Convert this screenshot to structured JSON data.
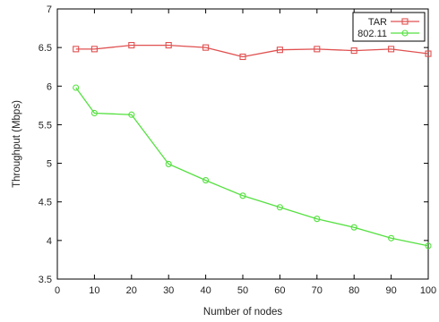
{
  "chart_data": {
    "type": "line",
    "title": "",
    "xlabel": "Number of nodes",
    "ylabel": "Throughput (Mbps)",
    "xlim": [
      0,
      100
    ],
    "ylim": [
      3.5,
      7
    ],
    "x_ticks": [
      0,
      10,
      20,
      30,
      40,
      50,
      60,
      70,
      80,
      90,
      100
    ],
    "y_ticks": [
      3.5,
      4,
      4.5,
      5,
      5.5,
      6,
      6.5,
      7
    ],
    "x_tick_labels": [
      "0",
      "10",
      "20",
      "30",
      "40",
      "50",
      "60",
      "70",
      "80",
      "90",
      "100"
    ],
    "y_tick_labels": [
      "3.5",
      "4",
      "4.5",
      "5",
      "5.5",
      "6",
      "6.5",
      "7"
    ],
    "grid": false,
    "legend_position": "top-right",
    "series": [
      {
        "name": "TAR",
        "color": "#e05050",
        "marker": "square",
        "x": [
          5,
          10,
          20,
          30,
          40,
          50,
          60,
          70,
          80,
          90,
          100
        ],
        "y": [
          6.48,
          6.48,
          6.53,
          6.53,
          6.5,
          6.38,
          6.47,
          6.48,
          6.46,
          6.48,
          6.42
        ]
      },
      {
        "name": "802.11",
        "color": "#55e040",
        "marker": "circle",
        "x": [
          5,
          10,
          20,
          30,
          40,
          50,
          60,
          70,
          80,
          90,
          100
        ],
        "y": [
          5.98,
          5.65,
          5.63,
          4.99,
          4.78,
          4.58,
          4.43,
          4.28,
          4.17,
          4.03,
          3.93
        ]
      }
    ]
  }
}
